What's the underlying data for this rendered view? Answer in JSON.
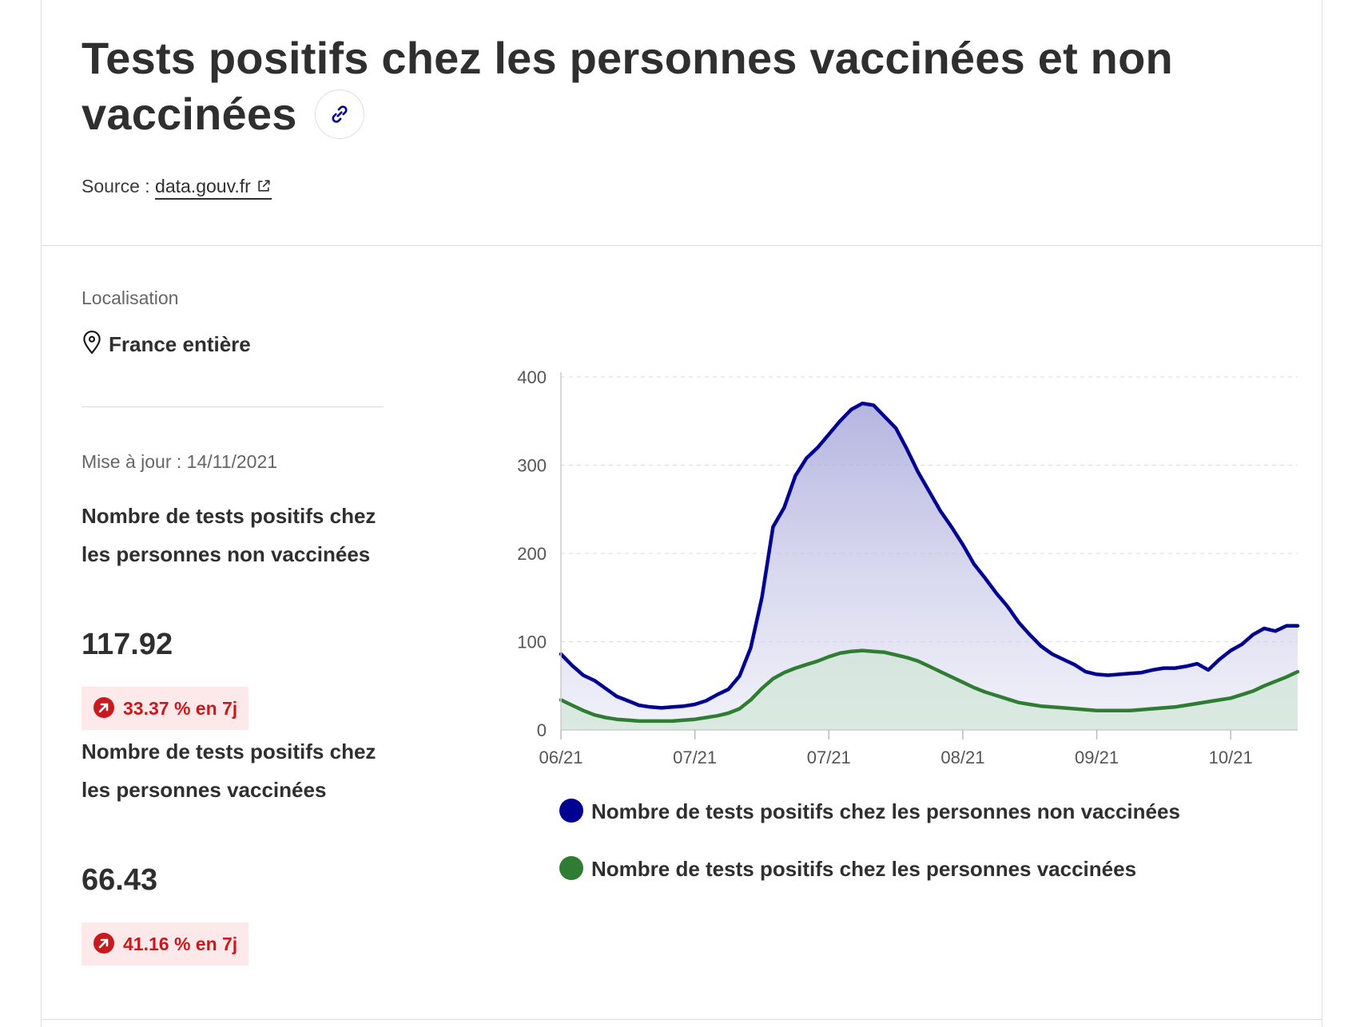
{
  "header": {
    "title": "Tests positifs chez les personnes vaccinées et non vaccinées",
    "source_label": "Source :",
    "source_link": "data.gouv.fr"
  },
  "location": {
    "label": "Localisation",
    "value": "France entière"
  },
  "update": "Mise à jour : 14/11/2021",
  "indicators": [
    {
      "label": "Nombre de tests positifs chez les personnes non vaccinées",
      "value": "117.92",
      "change": "33.37 % en 7j"
    },
    {
      "label": "Nombre de tests positifs chez les personnes vaccinées",
      "value": "66.43",
      "change": "41.16 % en 7j"
    }
  ],
  "colors": {
    "unvaccinated": "#000091",
    "vaccinated": "#2e7d32",
    "badge_text": "#c9191e",
    "badge_bg": "#fde9e9"
  },
  "chart_data": {
    "type": "area",
    "x_ticks": [
      "06/21",
      "07/21",
      "07/21",
      "08/21",
      "09/21",
      "10/21"
    ],
    "y_ticks": [
      "0",
      "100",
      "200",
      "300",
      "400"
    ],
    "ylim": [
      0,
      400
    ],
    "grid": "horizontal dashed",
    "legend_position": "bottom",
    "series": [
      {
        "name": "Nombre de tests positifs chez les personnes non vaccinées",
        "color": "#000091",
        "values": [
          86,
          73,
          62,
          56,
          47,
          38,
          33,
          28,
          26,
          25,
          26,
          27,
          29,
          33,
          40,
          46,
          61,
          93,
          150,
          230,
          252,
          288,
          308,
          320,
          335,
          350,
          363,
          370,
          368,
          355,
          342,
          318,
          292,
          270,
          248,
          230,
          210,
          188,
          172,
          155,
          140,
          122,
          108,
          95,
          86,
          80,
          74,
          66,
          63,
          62,
          63,
          64,
          65,
          68,
          70,
          70,
          72,
          75,
          68,
          80,
          90,
          97,
          108,
          115,
          112,
          118,
          118
        ]
      },
      {
        "name": "Nombre de tests positifs chez les personnes vaccinées",
        "color": "#2e7d32",
        "values": [
          34,
          28,
          22,
          17,
          14,
          12,
          11,
          10,
          10,
          10,
          10,
          11,
          12,
          14,
          16,
          19,
          24,
          34,
          47,
          58,
          65,
          70,
          74,
          78,
          83,
          87,
          89,
          90,
          89,
          88,
          85,
          82,
          78,
          72,
          66,
          60,
          54,
          48,
          43,
          39,
          35,
          31,
          29,
          27,
          26,
          25,
          24,
          23,
          22,
          22,
          22,
          22,
          23,
          24,
          25,
          26,
          28,
          30,
          32,
          34,
          36,
          40,
          44,
          50,
          55,
          60,
          66
        ]
      }
    ]
  }
}
